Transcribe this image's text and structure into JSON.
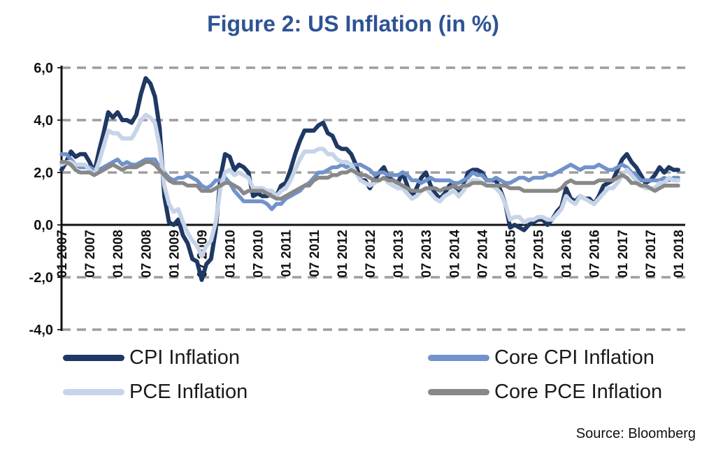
{
  "title": "Figure 2: US Inflation (in %)",
  "source_note": "Source: Bloomberg",
  "colors": {
    "title_blue": "#2E5395",
    "cpi_navy": "#1F3864",
    "core_cpi_blue": "#7292CB",
    "pce_light_blue": "#C7D4E8",
    "core_pce_gray": "#888888",
    "gridline_gray": "#9E9E9E",
    "axis_black": "#111111"
  },
  "legend": {
    "items": [
      {
        "key": "cpi",
        "label": "CPI Inflation"
      },
      {
        "key": "core_cpi",
        "label": "Core CPI Inflation"
      },
      {
        "key": "pce",
        "label": "PCE Inflation"
      },
      {
        "key": "core_pce",
        "label": "Core PCE Inflation"
      }
    ]
  },
  "chart_data": {
    "type": "line",
    "title": "Figure 2: US Inflation (in %)",
    "xlabel": "",
    "ylabel": "",
    "x_start": "01 2007",
    "x_end": "01 2018",
    "x_frequency": "monthly",
    "points_per_series": 133,
    "x_tick_labels": [
      "01 2007",
      "07 2007",
      "01 2008",
      "07 2008",
      "01 2009",
      "07 2009",
      "01 2010",
      "07 2010",
      "01 2011",
      "07 2011",
      "01 2012",
      "07 2012",
      "01 2013",
      "07 2013",
      "01 2014",
      "07 2014",
      "01 2015",
      "07 2015",
      "01 2016",
      "07 2016",
      "01 2017",
      "07 2017",
      "01 2018"
    ],
    "x_tick_step_months": 6,
    "ylim": [
      -4,
      6
    ],
    "y_ticks": [
      {
        "value": 6,
        "label": "6,0"
      },
      {
        "value": 4,
        "label": "4,0"
      },
      {
        "value": 2,
        "label": "2,0"
      },
      {
        "value": 0,
        "label": "0,0"
      },
      {
        "value": -2,
        "label": "-2,0"
      },
      {
        "value": -4,
        "label": "-4,0"
      }
    ],
    "grid_values": [
      6,
      4,
      2,
      -2,
      -4
    ],
    "grid_style": "dashed horizontal gray",
    "zero_line": "solid black",
    "legend_position": "bottom",
    "series": [
      {
        "key": "cpi",
        "name": "CPI Inflation",
        "color": "#1F3864",
        "width": 6,
        "values": [
          2.1,
          2.4,
          2.8,
          2.6,
          2.7,
          2.7,
          2.4,
          2.0,
          2.8,
          3.5,
          4.3,
          4.1,
          4.3,
          4.0,
          4.0,
          3.9,
          4.2,
          5.0,
          5.6,
          5.4,
          4.9,
          3.7,
          1.1,
          0.1,
          0.0,
          0.2,
          -0.4,
          -0.7,
          -1.3,
          -1.4,
          -2.1,
          -1.5,
          -1.3,
          -0.2,
          1.8,
          2.7,
          2.6,
          2.1,
          2.3,
          2.2,
          2.0,
          1.1,
          1.2,
          1.1,
          1.1,
          1.2,
          1.1,
          1.5,
          1.6,
          2.1,
          2.7,
          3.2,
          3.6,
          3.6,
          3.6,
          3.8,
          3.9,
          3.5,
          3.4,
          3.0,
          2.9,
          2.9,
          2.7,
          2.3,
          1.7,
          1.7,
          1.4,
          1.7,
          2.0,
          2.2,
          1.8,
          1.7,
          1.6,
          2.0,
          1.5,
          1.1,
          1.4,
          1.8,
          2.0,
          1.5,
          1.2,
          1.0,
          1.2,
          1.5,
          1.6,
          1.1,
          1.5,
          2.0,
          2.1,
          2.1,
          2.0,
          1.7,
          1.7,
          1.7,
          1.3,
          0.8,
          -0.1,
          0.0,
          -0.1,
          -0.2,
          0.0,
          0.1,
          0.2,
          0.2,
          0.0,
          0.2,
          0.5,
          0.7,
          1.4,
          1.0,
          0.9,
          1.1,
          1.0,
          1.0,
          0.8,
          1.1,
          1.5,
          1.6,
          1.7,
          2.1,
          2.5,
          2.7,
          2.4,
          2.2,
          1.9,
          1.6,
          1.7,
          1.9,
          2.2,
          2.0,
          2.2,
          2.1,
          2.1
        ]
      },
      {
        "key": "core_cpi",
        "name": "Core CPI Inflation",
        "color": "#7292CB",
        "width": 5.5,
        "values": [
          2.7,
          2.7,
          2.5,
          2.3,
          2.2,
          2.2,
          2.2,
          2.1,
          2.1,
          2.2,
          2.3,
          2.4,
          2.5,
          2.3,
          2.4,
          2.3,
          2.3,
          2.4,
          2.5,
          2.5,
          2.5,
          2.2,
          2.0,
          1.8,
          1.7,
          1.8,
          1.8,
          1.9,
          1.8,
          1.7,
          1.5,
          1.4,
          1.5,
          1.7,
          1.7,
          1.8,
          1.6,
          1.3,
          1.1,
          0.9,
          0.9,
          0.9,
          0.9,
          0.9,
          0.8,
          0.6,
          0.8,
          0.8,
          1.0,
          1.1,
          1.2,
          1.3,
          1.5,
          1.6,
          1.8,
          2.0,
          2.0,
          2.1,
          2.2,
          2.2,
          2.3,
          2.2,
          2.3,
          2.3,
          2.3,
          2.2,
          2.1,
          1.9,
          2.0,
          2.0,
          1.9,
          1.9,
          1.9,
          2.0,
          1.9,
          1.7,
          1.7,
          1.6,
          1.7,
          1.8,
          1.7,
          1.7,
          1.7,
          1.7,
          1.6,
          1.6,
          1.7,
          1.8,
          2.0,
          1.9,
          1.9,
          1.7,
          1.7,
          1.8,
          1.7,
          1.6,
          1.6,
          1.7,
          1.8,
          1.8,
          1.7,
          1.8,
          1.8,
          1.8,
          1.9,
          1.9,
          2.0,
          2.1,
          2.2,
          2.3,
          2.2,
          2.1,
          2.2,
          2.2,
          2.2,
          2.3,
          2.2,
          2.1,
          2.1,
          2.2,
          2.3,
          2.2,
          2.0,
          1.9,
          1.7,
          1.7,
          1.7,
          1.7,
          1.7,
          1.8,
          1.7,
          1.8,
          1.8
        ]
      },
      {
        "key": "pce",
        "name": "PCE Inflation",
        "color": "#C7D4E8",
        "width": 6,
        "values": [
          2.3,
          2.4,
          2.4,
          2.3,
          2.3,
          2.3,
          2.1,
          1.9,
          2.4,
          3.0,
          3.6,
          3.5,
          3.5,
          3.3,
          3.3,
          3.3,
          3.6,
          4.0,
          4.2,
          4.1,
          3.9,
          3.0,
          1.5,
          0.8,
          0.5,
          0.6,
          0.1,
          -0.3,
          -0.6,
          -0.8,
          -1.2,
          -0.8,
          -0.6,
          0.1,
          1.4,
          2.0,
          2.1,
          1.9,
          2.0,
          1.9,
          1.8,
          1.4,
          1.4,
          1.4,
          1.3,
          1.3,
          1.1,
          1.3,
          1.4,
          1.7,
          2.1,
          2.5,
          2.8,
          2.8,
          2.8,
          2.9,
          2.9,
          2.7,
          2.7,
          2.5,
          2.4,
          2.4,
          2.3,
          2.0,
          1.7,
          1.6,
          1.5,
          1.6,
          1.7,
          1.8,
          1.6,
          1.5,
          1.4,
          1.4,
          1.2,
          1.0,
          1.1,
          1.3,
          1.4,
          1.2,
          1.0,
          0.9,
          1.1,
          1.2,
          1.3,
          1.1,
          1.3,
          1.6,
          1.7,
          1.7,
          1.6,
          1.5,
          1.5,
          1.4,
          1.2,
          0.8,
          0.2,
          0.3,
          0.3,
          0.1,
          0.2,
          0.2,
          0.3,
          0.3,
          0.2,
          0.2,
          0.4,
          0.6,
          1.1,
          0.9,
          0.8,
          1.1,
          1.0,
          0.9,
          0.8,
          1.0,
          1.2,
          1.4,
          1.4,
          1.6,
          1.9,
          2.1,
          1.9,
          1.7,
          1.5,
          1.4,
          1.4,
          1.4,
          1.6,
          1.6,
          1.8,
          1.7,
          1.7
        ]
      },
      {
        "key": "core_pce",
        "name": "Core PCE Inflation",
        "color": "#888888",
        "width": 5.5,
        "values": [
          2.4,
          2.4,
          2.3,
          2.1,
          2.0,
          2.0,
          2.0,
          1.9,
          2.0,
          2.1,
          2.2,
          2.3,
          2.2,
          2.1,
          2.2,
          2.2,
          2.2,
          2.3,
          2.4,
          2.4,
          2.3,
          2.1,
          1.9,
          1.7,
          1.6,
          1.6,
          1.6,
          1.5,
          1.5,
          1.5,
          1.3,
          1.3,
          1.3,
          1.4,
          1.5,
          1.6,
          1.6,
          1.5,
          1.4,
          1.2,
          1.3,
          1.3,
          1.3,
          1.3,
          1.2,
          1.1,
          1.0,
          1.0,
          1.1,
          1.2,
          1.3,
          1.4,
          1.5,
          1.5,
          1.7,
          1.8,
          1.8,
          1.8,
          1.9,
          1.9,
          2.0,
          2.0,
          2.1,
          2.0,
          1.9,
          1.9,
          1.8,
          1.7,
          1.7,
          1.8,
          1.7,
          1.7,
          1.6,
          1.5,
          1.4,
          1.3,
          1.3,
          1.3,
          1.4,
          1.4,
          1.4,
          1.3,
          1.4,
          1.4,
          1.5,
          1.4,
          1.5,
          1.5,
          1.6,
          1.6,
          1.6,
          1.5,
          1.5,
          1.5,
          1.5,
          1.5,
          1.4,
          1.4,
          1.4,
          1.3,
          1.3,
          1.3,
          1.3,
          1.3,
          1.3,
          1.3,
          1.3,
          1.4,
          1.6,
          1.7,
          1.6,
          1.6,
          1.6,
          1.6,
          1.6,
          1.7,
          1.7,
          1.7,
          1.7,
          1.8,
          1.9,
          1.8,
          1.6,
          1.6,
          1.5,
          1.5,
          1.4,
          1.3,
          1.4,
          1.5,
          1.5,
          1.5,
          1.5
        ]
      }
    ]
  }
}
